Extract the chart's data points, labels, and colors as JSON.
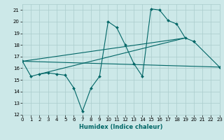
{
  "xlabel": "Humidex (Indice chaleur)",
  "xlim": [
    0,
    23
  ],
  "ylim": [
    12,
    21.5
  ],
  "xticks": [
    0,
    1,
    2,
    3,
    4,
    5,
    6,
    7,
    8,
    9,
    10,
    11,
    12,
    13,
    14,
    15,
    16,
    17,
    18,
    19,
    20,
    21,
    22,
    23
  ],
  "yticks": [
    12,
    13,
    14,
    15,
    16,
    17,
    18,
    19,
    20,
    21
  ],
  "bg_color": "#cce8e8",
  "grid_color": "#aacccc",
  "line_color": "#006666",
  "main_series": {
    "x": [
      0,
      1,
      2,
      3,
      4,
      5,
      6,
      7,
      8,
      9,
      10,
      11,
      12,
      13,
      14,
      15,
      16,
      17,
      18,
      19,
      20,
      21,
      22,
      23
    ],
    "y": [
      16.6,
      15.3,
      15.5,
      15.6,
      15.5,
      15.4,
      14.3,
      12.3,
      14.3,
      15.3,
      20.0,
      19.5,
      18.0,
      16.4,
      15.3,
      21.1,
      21.0,
      20.1,
      19.8,
      18.6,
      18.3,
      null,
      null,
      16.1
    ]
  },
  "straight_lines": [
    {
      "x": [
        0,
        23
      ],
      "y": [
        16.6,
        16.1
      ]
    },
    {
      "x": [
        0,
        19
      ],
      "y": [
        16.6,
        18.6
      ]
    },
    {
      "x": [
        2,
        19
      ],
      "y": [
        15.5,
        18.6
      ]
    }
  ]
}
